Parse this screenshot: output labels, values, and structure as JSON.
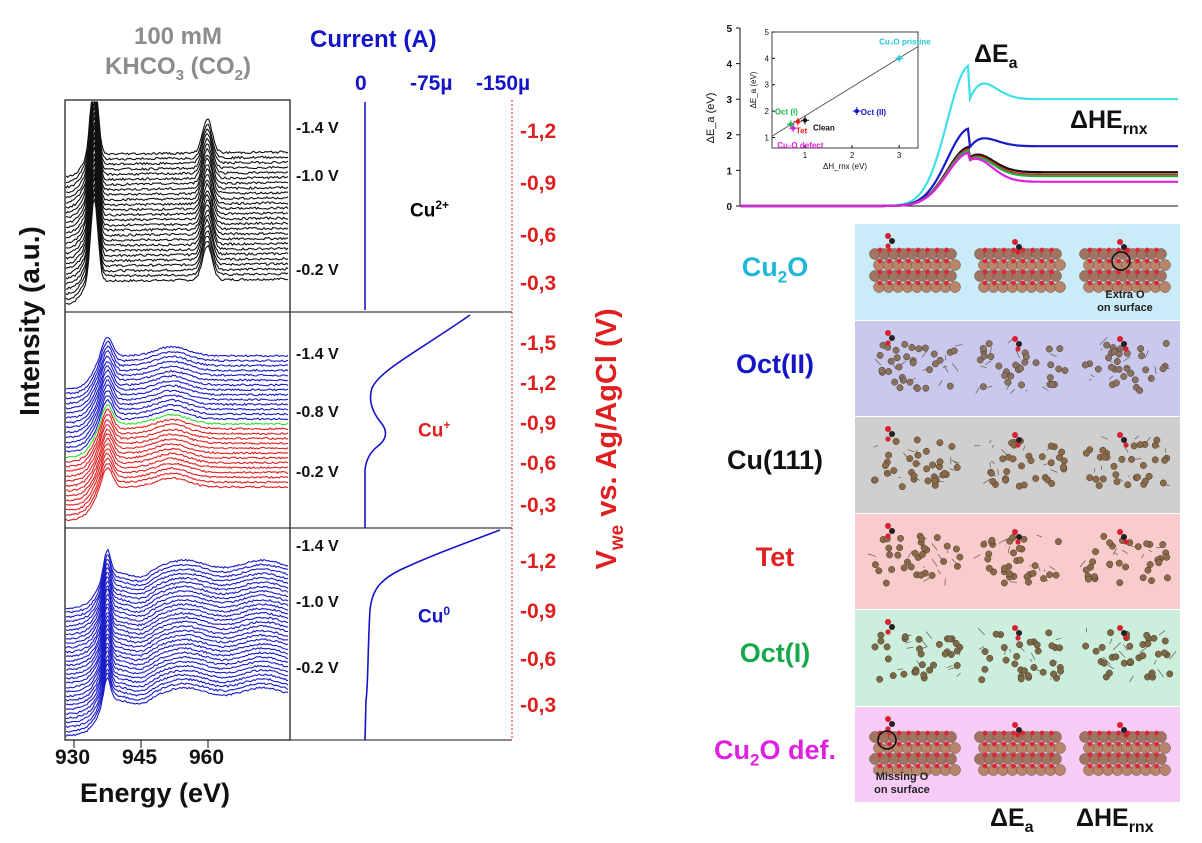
{
  "left": {
    "header_line1": "100 mM",
    "header_line2_pre": "KHCO",
    "header_line2_sub1": "3",
    "header_line2_mid": " (CO",
    "header_line2_sub2": "2",
    "header_line2_post": ")",
    "current_title": "Current (A)",
    "current_ticks": [
      "0",
      "-75µ",
      "-150µ"
    ],
    "y_axis_label": "Intensity (a.u.)",
    "x_axis_label": "Energy (eV)",
    "x_ticks": [
      "930",
      "945",
      "960"
    ],
    "right_axis_label_pre": "V",
    "right_axis_label_sub": "we",
    "right_axis_label_post": " vs. Ag/AgCl (V)",
    "panels": [
      {
        "ion": "Cu",
        "ion_sup": "2+",
        "ion_color": "#111111",
        "potentials": [
          "-1.4 V",
          "-1.0 V",
          "-0.2 V"
        ],
        "right_ticks": [
          "-1,2",
          "-0,9",
          "-0,6",
          "-0,3"
        ]
      },
      {
        "ion": "Cu",
        "ion_sup": "+",
        "ion_color": "#e02020",
        "potentials": [
          "-1.4 V",
          "-0.8 V",
          "-0.2 V"
        ],
        "right_ticks": [
          "-1,5",
          "-1,2",
          "-0,9",
          "-0,6",
          "-0,3"
        ]
      },
      {
        "ion": "Cu",
        "ion_sup": "0",
        "ion_color": "#1515c8",
        "potentials": [
          "-1.4 V",
          "-1.0 V",
          "-0.2 V"
        ],
        "right_ticks": [
          "-1,2",
          "-0,9",
          "-0,6",
          "-0,3"
        ]
      }
    ]
  },
  "right": {
    "rows": [
      {
        "label": "Cu",
        "sub": "2",
        "post": "O",
        "color": "#20b8d8",
        "bg": "#c9ecf8",
        "caption": [
          "Extra O",
          "on surface"
        ],
        "caption_col": 2
      },
      {
        "label": "Oct(II)",
        "sub": "",
        "post": "",
        "color": "#1515c8",
        "bg": "#c9c9ee",
        "caption": [],
        "caption_col": 0
      },
      {
        "label": "Cu(111)",
        "sub": "",
        "post": "",
        "color": "#111111",
        "bg": "#cfcfcf",
        "caption": [],
        "caption_col": 0
      },
      {
        "label": "Tet",
        "sub": "",
        "post": "",
        "color": "#e02020",
        "bg": "#f8cccc",
        "caption": [],
        "caption_col": 0
      },
      {
        "label": "Oct(I)",
        "sub": "",
        "post": "",
        "color": "#16a84a",
        "bg": "#cceedd",
        "caption": [],
        "caption_col": 0
      },
      {
        "label": "Cu",
        "sub": "2",
        "post": "O def.",
        "color": "#e020e0",
        "bg": "#f6ccf6",
        "caption": [
          "Missing O",
          "on surface"
        ],
        "caption_col": 0
      }
    ],
    "bottom_labels": [
      {
        "pre": "ΔE",
        "sub": "a"
      },
      {
        "pre": "ΔHE",
        "sub": "rnx"
      }
    ]
  },
  "chart_data": [
    {
      "type": "line",
      "name_hint": "energy profile",
      "annotations": [
        {
          "pre": "ΔE",
          "sub": "a"
        },
        {
          "pre": "ΔHE",
          "sub": "rnx"
        }
      ],
      "ylabel": "ΔE_a (eV)",
      "y_ticks": [
        0,
        1,
        2,
        3,
        4,
        5
      ],
      "ylim": [
        0,
        5
      ],
      "series": [
        {
          "color": "#40e0e8",
          "peak": 3.95,
          "final": 3.0
        },
        {
          "color": "#1a1ac8",
          "peak": 2.18,
          "final": 1.68
        },
        {
          "color": "#111111",
          "peak": 1.66,
          "final": 0.95
        },
        {
          "color": "#e02020",
          "peak": 1.6,
          "final": 0.88
        },
        {
          "color": "#20b040",
          "peak": 1.56,
          "final": 0.84
        },
        {
          "color": "#e020e0",
          "peak": 1.5,
          "final": 0.68
        }
      ]
    },
    {
      "type": "scatter",
      "name_hint": "inset",
      "xlabel": "ΔH_rnx (eV)",
      "ylabel": "ΔE_a (eV)",
      "x_ticks": [
        1,
        2,
        3
      ],
      "y_ticks": [
        1,
        2,
        3,
        4,
        5
      ],
      "xlim": [
        0.3,
        3.4
      ],
      "ylim": [
        0.6,
        5
      ],
      "fit_line": [
        [
          0.3,
          1.05
        ],
        [
          3.4,
          4.45
        ]
      ],
      "points": [
        {
          "label": "Cu₂O pristine",
          "x": 3.0,
          "y": 4.0,
          "color": "#20c8d8"
        },
        {
          "label": "Oct (II)",
          "x": 2.1,
          "y": 2.0,
          "color": "#1515c8"
        },
        {
          "label": "Oct (I)",
          "x": 0.7,
          "y": 1.5,
          "color": "#16b84a"
        },
        {
          "label": "Tet",
          "x": 0.85,
          "y": 1.6,
          "color": "#e02020"
        },
        {
          "label": "Clean",
          "x": 1.0,
          "y": 1.65,
          "color": "#111111"
        },
        {
          "label": "Cu₂O defect",
          "x": 0.75,
          "y": 1.35,
          "color": "#e020e0"
        }
      ]
    }
  ]
}
